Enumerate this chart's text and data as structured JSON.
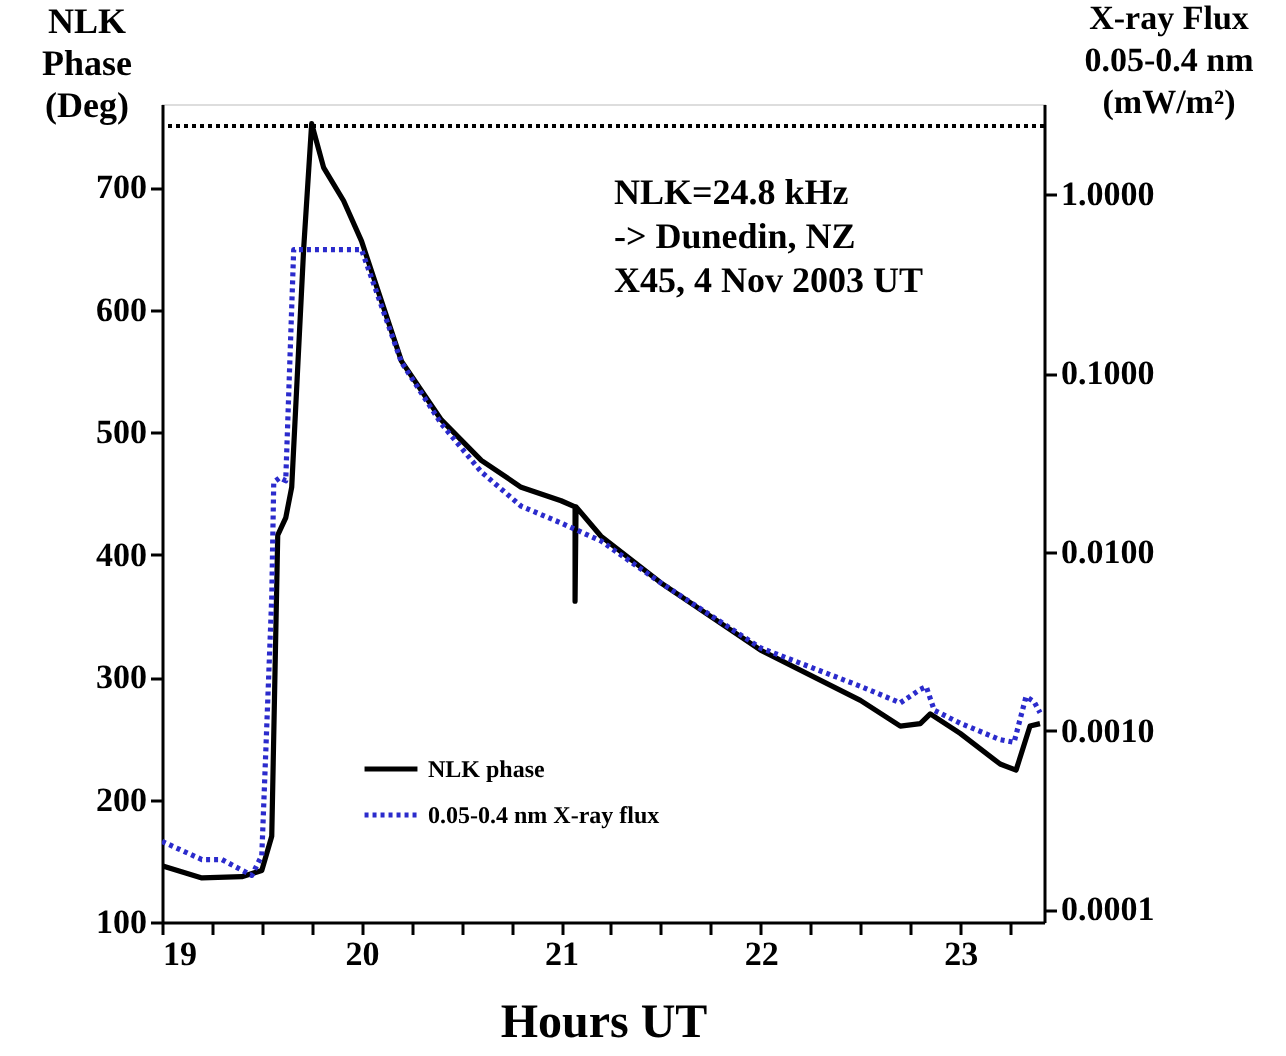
{
  "chart_data": {
    "type": "line",
    "xlabel": "Hours UT",
    "ylabel": "NLK\nPhase\n(Deg)",
    "y2label": "X-ray Flux\n0.05-0.4 nm\n(mW/m²)",
    "annotations": [
      "NLK=24.8 kHz",
      "-> Dunedin, NZ",
      "X45, 4 Nov 2003 UT"
    ],
    "xlim": [
      19,
      23.42
    ],
    "xticks": [
      19,
      {
        "value": 19.25,
        "label": null
      },
      {
        "value": 19.5,
        "label": null
      },
      {
        "value": 19.75,
        "label": null
      },
      20,
      {
        "value": 20.25,
        "label": null
      },
      {
        "value": 20.5,
        "label": null
      },
      {
        "value": 20.75,
        "label": null
      },
      21,
      {
        "value": 21.25,
        "label": null
      },
      {
        "value": 21.5,
        "label": null
      },
      {
        "value": 21.75,
        "label": null
      },
      22,
      {
        "value": 22.25,
        "label": null
      },
      {
        "value": 22.5,
        "label": null
      },
      {
        "value": 22.75,
        "label": null
      },
      23,
      {
        "value": 23.25,
        "label": null
      }
    ],
    "ylim": [
      100,
      768
    ],
    "yticks": [
      100,
      200,
      300,
      400,
      500,
      600,
      700
    ],
    "y2lim": [
      8.5e-05,
      3.2
    ],
    "y2ticks": [
      {
        "value": 0.0001,
        "label": "0.0001"
      },
      {
        "value": 0.001,
        "label": "0.0010"
      },
      {
        "value": 0.01,
        "label": "0.0100"
      },
      {
        "value": 0.1,
        "label": "0.1000"
      },
      {
        "value": 1,
        "label": "1.0000"
      }
    ],
    "log": "y2",
    "grid": false,
    "legend": "bottom left",
    "ref_lines": [
      {
        "axis": "y",
        "value": 750,
        "label": null,
        "color": "#000000",
        "line_style": "dotted"
      }
    ],
    "series": [
      {
        "name": "NLK  phase",
        "color": "#000000",
        "line_style": "solid",
        "axis": "y",
        "x": [
          19.0,
          19.2,
          19.4,
          19.5,
          19.55,
          19.58,
          19.62,
          19.65,
          19.71,
          19.75,
          19.81,
          19.91,
          20.0,
          20.2,
          20.4,
          20.6,
          20.8,
          21.0,
          21.07,
          21.07,
          21.075,
          21.2,
          21.5,
          22.0,
          22.5,
          22.7,
          22.8,
          22.85,
          23.0,
          23.2,
          23.28,
          23.35,
          23.4
        ],
        "values": [
          146,
          136,
          137,
          142,
          170,
          416,
          430,
          455,
          650,
          752,
          716,
          689,
          656,
          558,
          510,
          477,
          455,
          444,
          439,
          362,
          439,
          415,
          377,
          322,
          281,
          260,
          262,
          270,
          254,
          229,
          224,
          260,
          262
        ]
      },
      {
        "name": "0.05-0.4  nm  X-ray  flux",
        "color": "#2b2bcc",
        "line_style": "dotted",
        "axis": "y2",
        "x": [
          19.0,
          19.2,
          19.3,
          19.45,
          19.5,
          19.55,
          19.56,
          19.59,
          19.62,
          19.66,
          20.0,
          20.2,
          20.4,
          20.6,
          20.8,
          21.0,
          21.2,
          21.5,
          22.0,
          22.5,
          22.7,
          22.8,
          22.83,
          22.87,
          23.0,
          23.2,
          23.27,
          23.33,
          23.37,
          23.4
        ],
        "values": [
          0.00024,
          0.00019,
          0.00019,
          0.000155,
          0.0002,
          0.0056,
          0.0245,
          0.026,
          0.025,
          0.49,
          0.49,
          0.115,
          0.052,
          0.028,
          0.018,
          0.0145,
          0.0115,
          0.0067,
          0.0029,
          0.00177,
          0.00143,
          0.0017,
          0.00176,
          0.0013,
          0.0011,
          0.00089,
          0.00086,
          0.00155,
          0.00145,
          0.00126
        ]
      }
    ]
  }
}
